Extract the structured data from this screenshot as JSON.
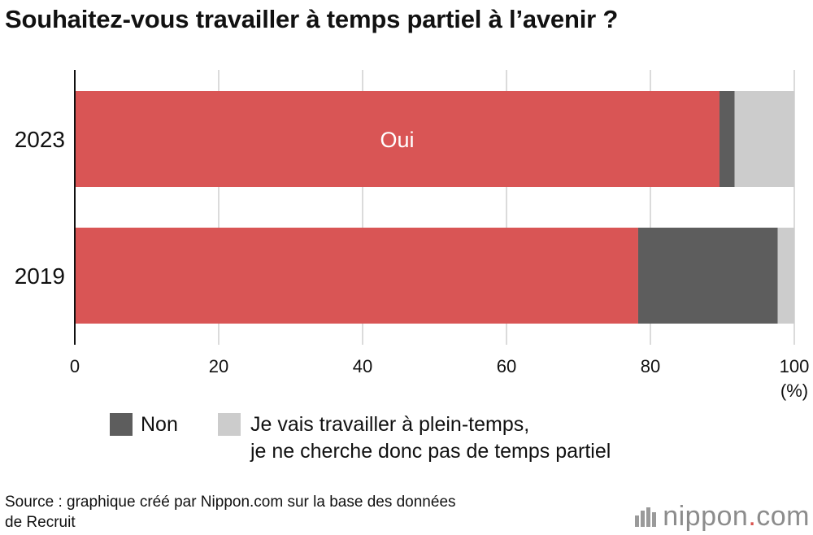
{
  "chart_data": {
    "type": "bar",
    "orientation": "horizontal",
    "stacked": true,
    "title": "Souhaitez-vous travailler à temps partiel à l’avenir ?",
    "categories": [
      "2023",
      "2019"
    ],
    "series": [
      {
        "name": "Oui",
        "color": "#d95555",
        "values": [
          89.6,
          78.3
        ]
      },
      {
        "name": "Non",
        "color": "#5d5d5d",
        "values": [
          2.1,
          19.4
        ]
      },
      {
        "name": "Je vais travailler à plein-temps, je ne cherche donc pas de temps partiel",
        "color": "#cccccc",
        "values": [
          8.3,
          2.3
        ]
      }
    ],
    "bar_label": "Oui",
    "xlim": [
      0,
      100
    ],
    "xticks": [
      "0",
      "20",
      "40",
      "60",
      "80",
      "100"
    ],
    "xunit": "(%)",
    "grid": true,
    "legend_position": "bottom"
  },
  "legend": {
    "non": "Non",
    "plein_line1": "Je vais travailler à plein-temps,",
    "plein_line2": "je ne cherche donc pas de temps partiel"
  },
  "source": {
    "line1": "Source : graphique créé par Nippon.com sur la base des données",
    "line2": "de Recruit"
  },
  "logo": {
    "name": "nippon",
    "dot": ".",
    "suffix": "com"
  }
}
